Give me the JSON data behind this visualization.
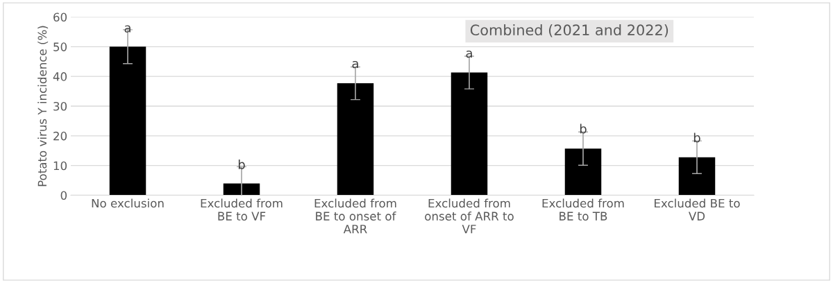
{
  "chart_data": {
    "type": "bar",
    "title": "Combined (2021 and 2022)",
    "ylabel": "Potato virus Y incidence (%)",
    "categories": [
      "No exclusion",
      "Excluded from BE to VF",
      "Excluded from BE to onset of ARR",
      "Excluded from onset of ARR to VF",
      "Excluded from BE to TB",
      "Excluded BE to VD"
    ],
    "values": [
      50,
      4,
      37.7,
      41.3,
      15.7,
      12.8
    ],
    "errors": [
      5.7,
      5.6,
      5.5,
      5.5,
      5.6,
      5.5
    ],
    "color": "#000000",
    "ylim": [
      0,
      60
    ],
    "yticks": [
      0,
      10,
      20,
      30,
      40,
      50,
      60
    ],
    "grid": "y",
    "legend": false,
    "annotations": [
      {
        "text": "a",
        "x": "No exclusion",
        "y": 56
      },
      {
        "text": "b",
        "x": "Excluded from BE to VF",
        "y": 10
      },
      {
        "text": "a",
        "x": "Excluded from BE to onset of ARR",
        "y": 44
      },
      {
        "text": "a",
        "x": "Excluded from onset of ARR to VF",
        "y": 47.5
      },
      {
        "text": "b",
        "x": "Excluded from BE to TB",
        "y": 22
      },
      {
        "text": "b",
        "x": "Excluded BE to VD",
        "y": 19
      }
    ]
  }
}
